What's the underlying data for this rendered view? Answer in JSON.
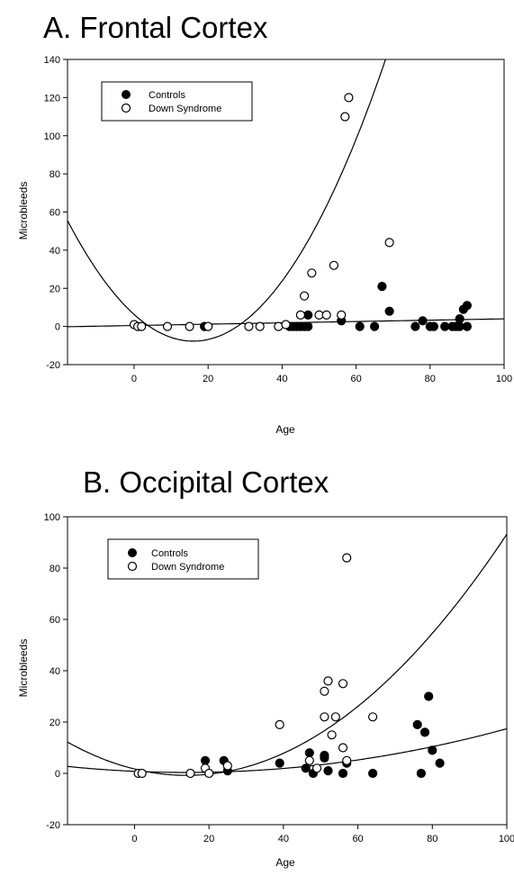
{
  "chart_data": [
    {
      "type": "scatter",
      "title": "A.  Frontal Cortex",
      "xlabel": "Age",
      "ylabel": "Microbleeds",
      "xlim": [
        -18,
        100
      ],
      "ylim": [
        -20,
        140
      ],
      "xticks": [
        "0",
        "20",
        "40",
        "60",
        "80",
        "100"
      ],
      "yticks": [
        "-20",
        "0",
        "20",
        "40",
        "60",
        "80",
        "100",
        "120",
        "140"
      ],
      "grid": false,
      "legend_position": "top-left",
      "series": [
        {
          "name": "Controls",
          "marker": "filled-circle",
          "color": "#000000",
          "x": [
            19,
            42,
            43,
            44,
            45,
            46,
            47,
            47,
            56,
            61,
            65,
            67,
            69,
            76,
            78,
            80,
            81,
            84,
            86,
            87,
            88,
            88,
            89,
            90,
            90
          ],
          "y": [
            0,
            0,
            0,
            0,
            0,
            0,
            0,
            6,
            3,
            0,
            0,
            21,
            8,
            0,
            3,
            0,
            0,
            0,
            0,
            0,
            4,
            0,
            9,
            11,
            0
          ],
          "fit": {
            "type": "linear",
            "coef": [
              0.5,
              0.035
            ]
          }
        },
        {
          "name": "Down Syndrome",
          "marker": "open-circle",
          "color": "#000000",
          "x": [
            0,
            1,
            2,
            9,
            15,
            20,
            31,
            34,
            39,
            41,
            45,
            46,
            48,
            50,
            52,
            54,
            56,
            57,
            58,
            69
          ],
          "y": [
            1,
            0,
            0,
            0,
            0,
            0,
            0,
            0,
            0,
            1,
            6,
            16,
            28,
            6,
            6,
            32,
            6,
            110,
            120,
            44
          ],
          "fit": {
            "type": "quadratic",
            "coef": [
              6.3,
              -1.75,
              0.0547
            ]
          }
        }
      ]
    },
    {
      "type": "scatter",
      "title": "B. Occipital Cortex",
      "xlabel": "Age",
      "ylabel": "Microbleeds",
      "xlim": [
        -18,
        100
      ],
      "ylim": [
        -20,
        100
      ],
      "xticks": [
        "0",
        "20",
        "40",
        "60",
        "80",
        "100"
      ],
      "yticks": [
        "-20",
        "0",
        "20",
        "40",
        "60",
        "80",
        "100"
      ],
      "grid": false,
      "legend_position": "top-left",
      "series": [
        {
          "name": "Controls",
          "marker": "filled-circle",
          "color": "#000000",
          "x": [
            19,
            24,
            25,
            39,
            46,
            47,
            48,
            51,
            51,
            52,
            56,
            57,
            64,
            76,
            77,
            78,
            79,
            80,
            82
          ],
          "y": [
            5,
            5,
            1,
            4,
            2,
            8,
            0,
            7,
            6,
            1,
            0,
            4,
            0,
            19,
            0,
            16,
            30,
            9,
            4
          ],
          "fit": {
            "type": "quadratic",
            "coef": [
              0.8,
              -0.064,
              0.0023
            ]
          }
        },
        {
          "name": "Down Syndrome",
          "marker": "open-circle",
          "color": "#000000",
          "x": [
            1,
            2,
            15,
            19,
            20,
            25,
            39,
            47,
            49,
            51,
            51,
            52,
            53,
            54,
            56,
            56,
            57,
            57,
            64
          ],
          "y": [
            0,
            0,
            0,
            2,
            0,
            3,
            19,
            5,
            2,
            22,
            32,
            36,
            15,
            22,
            35,
            10,
            84,
            5,
            22
          ],
          "fit": {
            "type": "quadratic",
            "coef": [
              1.7,
              -0.355,
              0.0127
            ]
          }
        }
      ]
    }
  ]
}
